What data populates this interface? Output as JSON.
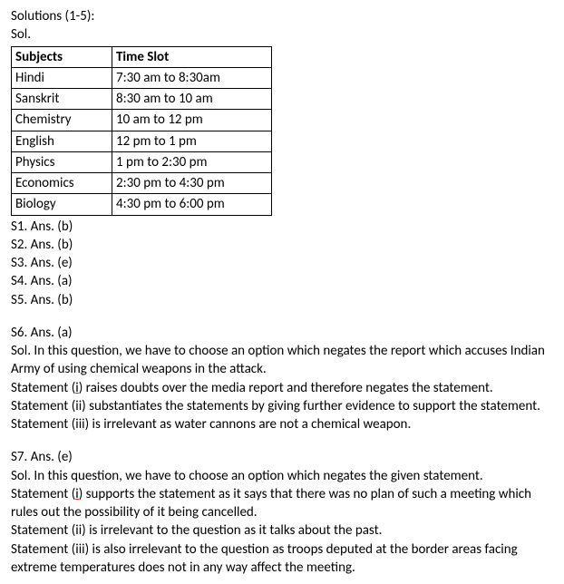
{
  "header": {
    "solutions_range": "Solutions (1-5):",
    "sol_label": "Sol."
  },
  "table": {
    "columns": [
      "Subjects",
      "Time Slot"
    ],
    "rows": [
      [
        "Hindi",
        "7:30 am to 8:30am"
      ],
      [
        "Sanskrit",
        "8:30 am to 10 am"
      ],
      [
        "Chemistry",
        "10 am to 12 pm"
      ],
      [
        "English",
        "12 pm to 1 pm"
      ],
      [
        "Physics",
        "1 pm to 2:30 pm"
      ],
      [
        "Economics",
        "2:30 pm to 4:30 pm"
      ],
      [
        "Biology",
        "4:30 pm to 6:00 pm"
      ]
    ]
  },
  "answers_1_5": [
    "S1. Ans. (b)",
    "S2. Ans. (b)",
    "S3. Ans. (e)",
    "S4. Ans. (a)",
    "S5. Ans. (b)"
  ],
  "s6": {
    "heading": "S6. Ans. (a)",
    "sol_line": "Sol. In this question, we have to choose an option which negates the report which accuses Indian Army of using chemical weapons in the attack.",
    "stmt_i_prefix": "Statement (",
    "stmt_i_marker": "i",
    "stmt_i_suffix": ") raises doubts over the media report and therefore negates the statement.",
    "stmt_ii": "Statement (ii) substantiates the statements by giving further evidence to support the statement.",
    "stmt_iii": "Statement (iii) is irrelevant as water cannons are not a chemical weapon."
  },
  "s7": {
    "heading": "S7. Ans. (e)",
    "sol_line": "Sol. In this question, we have to choose an option which negates the given statement.",
    "stmt_i_prefix": "Statement (",
    "stmt_i_marker": "i",
    "stmt_i_suffix": ") supports the statement as it says that there was no plan of such a meeting which rules out the possibility of it being cancelled.",
    "stmt_ii": "Statement (ii) is irrelevant to the question as it talks about the past.",
    "stmt_iii": "Statement (iii) is also irrelevant to the question as troops deputed at the border areas facing extreme temperatures does not in any way affect the meeting."
  }
}
